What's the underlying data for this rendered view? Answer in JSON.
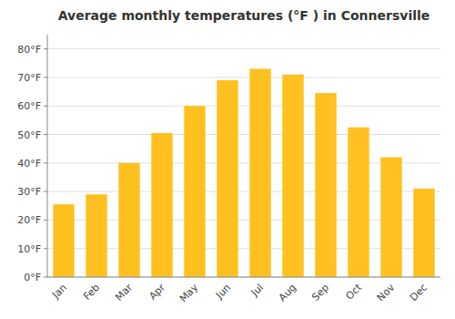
{
  "chart_data": {
    "type": "bar",
    "title": "Average monthly temperatures (°F ) in Connersville",
    "categories": [
      "Jan",
      "Feb",
      "Mar",
      "Apr",
      "May",
      "Jun",
      "Jul",
      "Aug",
      "Sep",
      "Oct",
      "Nov",
      "Dec"
    ],
    "values": [
      25.5,
      29.0,
      40.0,
      50.5,
      60.0,
      69.0,
      73.0,
      71.0,
      64.5,
      52.5,
      42.0,
      31.0
    ],
    "color": "#FFC020",
    "ylim": [
      0,
      85
    ],
    "yticks": [
      {
        "value": 0,
        "label": "0°F"
      },
      {
        "value": 10,
        "label": "10°F"
      },
      {
        "value": 20,
        "label": "20°F"
      },
      {
        "value": 30,
        "label": "30°F"
      },
      {
        "value": 40,
        "label": "40°F"
      },
      {
        "value": 50,
        "label": "50°F"
      },
      {
        "value": 60,
        "label": "60°F"
      },
      {
        "value": 70,
        "label": "70°F"
      },
      {
        "value": 80,
        "label": "80°F"
      }
    ],
    "grid": true
  }
}
